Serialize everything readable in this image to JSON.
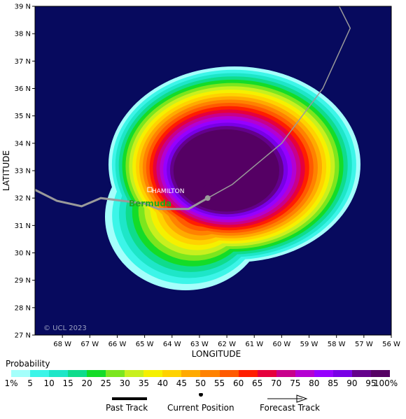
{
  "map": {
    "x_axis_label": "LONGITUDE",
    "y_axis_label": "LATITUDE",
    "x_ticks": [
      "68 W",
      "67 W",
      "66 W",
      "65 W",
      "64 W",
      "63 W",
      "62 W",
      "61 W",
      "60 W",
      "59 W",
      "58 W",
      "57 W",
      "56 W"
    ],
    "y_ticks": [
      "39 N",
      "38 N",
      "37 N",
      "36 N",
      "35 N",
      "34 N",
      "33 N",
      "32 N",
      "31 N",
      "30 N",
      "29 N",
      "28 N",
      "27 N"
    ],
    "lon_range": [
      -69,
      -56
    ],
    "lat_range": [
      27,
      39
    ],
    "place_name": "HAMILTON",
    "island_name": "Bermuda",
    "watermark": "© UCL 2023",
    "ocean_color": "#070a5e",
    "track_color": "#9a9a9a"
  },
  "legend": {
    "title": "Probability",
    "ticks": [
      "1%",
      "5",
      "10",
      "15",
      "20",
      "25",
      "30",
      "35",
      "40",
      "45",
      "50",
      "55",
      "60",
      "65",
      "70",
      "75",
      "80",
      "85",
      "90",
      "95",
      "100%"
    ],
    "colors": [
      "#a4fffb",
      "#3cf5e8",
      "#1ee6c8",
      "#0fdc8c",
      "#14dc28",
      "#7ce61e",
      "#c8f01e",
      "#f5f000",
      "#ffd200",
      "#ffaa00",
      "#ff8200",
      "#ff5a00",
      "#ff1e00",
      "#e6003c",
      "#c8008c",
      "#b400d2",
      "#9600ff",
      "#7800e6",
      "#64008c",
      "#550064"
    ],
    "past_track": "Past Track",
    "current_position": "Current Position",
    "forecast_track": "Forecast Track"
  },
  "past_track": [
    [
      -69,
      32.3
    ],
    [
      -68.2,
      31.9
    ],
    [
      -67.3,
      31.7
    ],
    [
      -66.6,
      32
    ],
    [
      -65,
      31.8
    ],
    [
      -64.5,
      31.6
    ],
    [
      -63.4,
      31.6
    ],
    [
      -62.7,
      32
    ]
  ],
  "current_position": [
    -62.7,
    32
  ],
  "forecast_track": [
    [
      -62.7,
      32
    ],
    [
      -61.8,
      32.5
    ],
    [
      -60,
      34
    ],
    [
      -58.5,
      36
    ],
    [
      -57.5,
      38.2
    ],
    [
      -57.9,
      39
    ]
  ]
}
